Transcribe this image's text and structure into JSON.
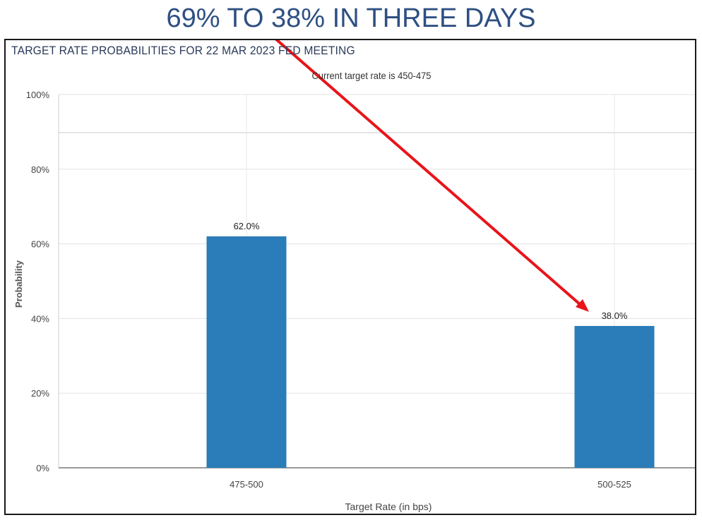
{
  "headline": "69% TO 38% IN THREE DAYS",
  "chart_data": {
    "type": "bar",
    "title": "TARGET RATE PROBABILITIES FOR 22 MAR 2023 FED MEETING",
    "subtitle": "Current target rate is 450-475",
    "xlabel": "Target Rate (in bps)",
    "ylabel": "Probability",
    "categories": [
      "475-500",
      "500-525"
    ],
    "values": [
      62.0,
      38.0
    ],
    "data_labels": [
      "62.0%",
      "38.0%"
    ],
    "ylim": [
      0,
      100
    ],
    "yticks": [
      0,
      20,
      40,
      60,
      80,
      100
    ],
    "ytick_labels": [
      "0%",
      "20%",
      "40%",
      "60%",
      "80%",
      "100%"
    ],
    "grid": true,
    "bar_color": "#2a7db8",
    "arrow_color": "#e8141a"
  }
}
